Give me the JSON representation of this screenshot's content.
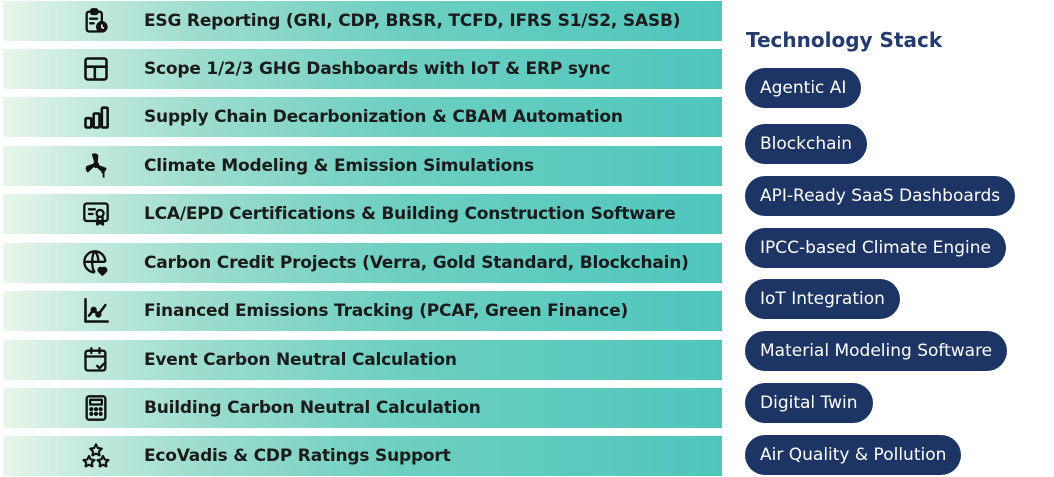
{
  "services": [
    {
      "label": "ESG Reporting (GRI, CDP, BRSR, TCFD, IFRS S1/S2, SASB)",
      "icon": "clipboard-clock-icon"
    },
    {
      "label": "Scope 1/2/3 GHG Dashboards with IoT & ERP sync",
      "icon": "dashboard-layout-icon"
    },
    {
      "label": "Supply Chain Decarbonization & CBAM Automation",
      "icon": "bar-chart-icon"
    },
    {
      "label": "Climate Modeling & Emission Simulations",
      "icon": "wind-turbine-icon"
    },
    {
      "label": "LCA/EPD Certifications & Building Construction Software",
      "icon": "certificate-icon"
    },
    {
      "label": "Carbon Credit Projects (Verra, Gold Standard, Blockchain)",
      "icon": "globe-heart-icon"
    },
    {
      "label": "Financed Emissions Tracking (PCAF, Green Finance)",
      "icon": "trend-chart-icon"
    },
    {
      "label": "Event Carbon Neutral Calculation",
      "icon": "calendar-check-icon"
    },
    {
      "label": "Building Carbon Neutral Calculation",
      "icon": "calculator-icon"
    },
    {
      "label": "EcoVadis & CDP Ratings Support",
      "icon": "stars-rating-icon"
    }
  ],
  "tech_stack": {
    "title": "Technology Stack",
    "items": [
      "Agentic AI",
      "Blockchain",
      "API-Ready SaaS Dashboards",
      "IPCC-based Climate Engine",
      "IoT Integration",
      "Material Modeling Software",
      "Digital Twin",
      "Air Quality & Pollution"
    ]
  },
  "colors": {
    "pill_background": "#1c3565",
    "title_color": "#233b6e",
    "row_gradient_end": "#4fc6bd"
  }
}
